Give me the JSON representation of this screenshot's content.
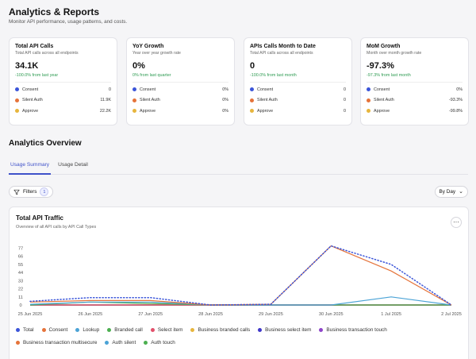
{
  "page": {
    "title": "Analytics & Reports",
    "subtitle": "Monitor API performance, usage patterns, and costs."
  },
  "cards": [
    {
      "title": "Total API Calls",
      "desc": "Total API calls across all endpoints",
      "value": "34.1K",
      "change": "-100.0% from last year",
      "rows": [
        {
          "label": "Consent",
          "value": "0",
          "color": "#3b55d9"
        },
        {
          "label": "Silent Auth",
          "value": "11.9K",
          "color": "#e5733a"
        },
        {
          "label": "Approve",
          "value": "22.2K",
          "color": "#e7b53d"
        }
      ]
    },
    {
      "title": "YoY Growth",
      "desc": "Year over year growth rate",
      "value": "0%",
      "change": "0% from last quarter",
      "rows": [
        {
          "label": "Consent",
          "value": "0%",
          "color": "#3b55d9"
        },
        {
          "label": "Silent Auth",
          "value": "0%",
          "color": "#e5733a"
        },
        {
          "label": "Approve",
          "value": "0%",
          "color": "#e7b53d"
        }
      ]
    },
    {
      "title": "APIs Calls Month to Date",
      "desc": "Total API calls across all endpoints",
      "value": "0",
      "change": "-100.0% from last month",
      "rows": [
        {
          "label": "Consent",
          "value": "0",
          "color": "#3b55d9"
        },
        {
          "label": "Silent Auth",
          "value": "0",
          "color": "#e5733a"
        },
        {
          "label": "Approve",
          "value": "0",
          "color": "#e7b53d"
        }
      ]
    },
    {
      "title": "MoM Growth",
      "desc": "Month over month growth rate",
      "value": "-97.3%",
      "change": "-97.3% from last month",
      "rows": [
        {
          "label": "Consent",
          "value": "0%",
          "color": "#3b55d9"
        },
        {
          "label": "Silent Auth",
          "value": "-93.3%",
          "color": "#e5733a"
        },
        {
          "label": "Approve",
          "value": "-99.8%",
          "color": "#e7b53d"
        }
      ]
    }
  ],
  "overview": {
    "title": "Analytics Overview",
    "tabs": [
      {
        "label": "Usage Summary",
        "active": true
      },
      {
        "label": "Usage Detail",
        "active": false
      }
    ],
    "filters_label": "Filters",
    "filters_count": "1",
    "range_label": "By Day",
    "chevron_glyph": "⌄",
    "more_glyph": "···"
  },
  "chart_data": {
    "type": "line",
    "title": "Total API Traffic",
    "subtitle": "Overview of all API calls by API Call Types",
    "x": [
      "25 Jun 2025",
      "26 Jun 2025",
      "27 Jun 2025",
      "28 Jun 2025",
      "29 Jun 2025",
      "30 Jun 2025",
      "1 Jul 2025",
      "2 Jul 2025"
    ],
    "y_ticks": [
      0,
      11,
      22,
      33,
      44,
      55,
      66,
      77
    ],
    "ylim": [
      0,
      85
    ],
    "grid": false,
    "legend_position": "bottom",
    "series": [
      {
        "name": "Total",
        "color": "#3b55d9",
        "style": "dotted",
        "values": [
          5,
          10,
          10,
          0,
          1,
          80,
          55,
          0
        ]
      },
      {
        "name": "Consent",
        "color": "#e5733a",
        "style": "solid",
        "values": [
          4,
          6,
          6,
          0,
          1,
          80,
          46,
          0
        ]
      },
      {
        "name": "Lookup",
        "color": "#4ba3d6",
        "style": "solid",
        "values": [
          1,
          4,
          4,
          0,
          0,
          0,
          11,
          0
        ]
      },
      {
        "name": "Branded call",
        "color": "#4caf50",
        "style": "solid",
        "values": [
          0,
          4,
          2,
          0,
          0,
          0,
          0,
          0
        ]
      },
      {
        "name": "Select item",
        "color": "#e2506b",
        "style": "solid",
        "values": [
          0,
          0,
          0,
          0,
          0,
          0,
          0,
          0
        ]
      },
      {
        "name": "Business branded calls",
        "color": "#e7b53d",
        "style": "solid",
        "values": [
          0,
          0,
          0,
          0,
          0,
          0,
          0,
          0
        ]
      },
      {
        "name": "Business select item",
        "color": "#3f37c9",
        "style": "solid",
        "values": [
          0,
          0,
          0,
          0,
          0,
          0,
          0,
          0
        ]
      },
      {
        "name": "Business transaction touch",
        "color": "#8e44c9",
        "style": "solid",
        "values": [
          0,
          0,
          0,
          0,
          0,
          0,
          0,
          0
        ]
      },
      {
        "name": "Business transaction multisecure",
        "color": "#e5733a",
        "style": "solid",
        "values": [
          0,
          0,
          0,
          0,
          0,
          0,
          0,
          0
        ]
      },
      {
        "name": "Auth silent",
        "color": "#4ba3d6",
        "style": "solid",
        "values": [
          0,
          0,
          0,
          0,
          0,
          0,
          0,
          0
        ]
      },
      {
        "name": "Auth touch",
        "color": "#4caf50",
        "style": "solid",
        "values": [
          0,
          0,
          0,
          0,
          0,
          0,
          0,
          0
        ]
      }
    ]
  }
}
